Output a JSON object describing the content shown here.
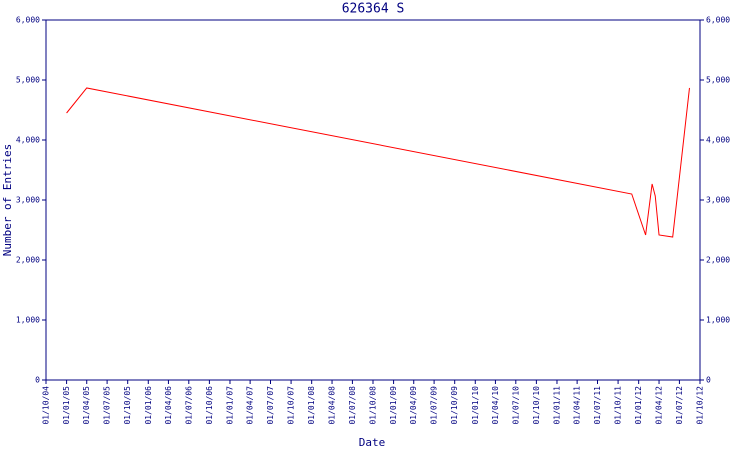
{
  "chart_data": {
    "type": "line",
    "title": "626364 S",
    "xlabel": "Date",
    "ylabel": "Number of Entries",
    "x": [
      "01/01/05",
      "01/04/05",
      "01/12/11",
      "01/02/12",
      "01/03/12",
      "15/03/12",
      "01/04/12",
      "01/06/12",
      "15/08/12"
    ],
    "series": [
      {
        "name": "626364 S",
        "color": "#ff0000",
        "values": [
          4450,
          4867,
          3100,
          2417,
          3267,
          3067,
          2417,
          2383,
          4867
        ]
      }
    ],
    "xlim": [
      "01/10/04",
      "01/10/12"
    ],
    "xticks": [
      "01/10/04",
      "01/01/05",
      "01/04/05",
      "01/07/05",
      "01/10/05",
      "01/01/06",
      "01/04/06",
      "01/07/06",
      "01/10/06",
      "01/01/07",
      "01/04/07",
      "01/07/07",
      "01/10/07",
      "01/01/08",
      "01/04/08",
      "01/07/08",
      "01/10/08",
      "01/01/09",
      "01/04/09",
      "01/07/09",
      "01/10/09",
      "01/01/10",
      "01/04/10",
      "01/07/10",
      "01/10/10",
      "01/01/11",
      "01/04/11",
      "01/07/11",
      "01/10/11",
      "01/01/12",
      "01/04/12",
      "01/07/12",
      "01/10/12"
    ],
    "ylim": [
      0,
      6000
    ],
    "yticks": [
      0,
      {
        "value": 1000,
        "label": "1,000"
      },
      {
        "value": 2000,
        "label": "2,000"
      },
      {
        "value": 3000,
        "label": "3,000"
      },
      {
        "value": 4000,
        "label": "4,000"
      },
      {
        "value": 5000,
        "label": "5,000"
      },
      {
        "value": 6000,
        "label": "6,000"
      }
    ],
    "axis_color": "#000080"
  }
}
